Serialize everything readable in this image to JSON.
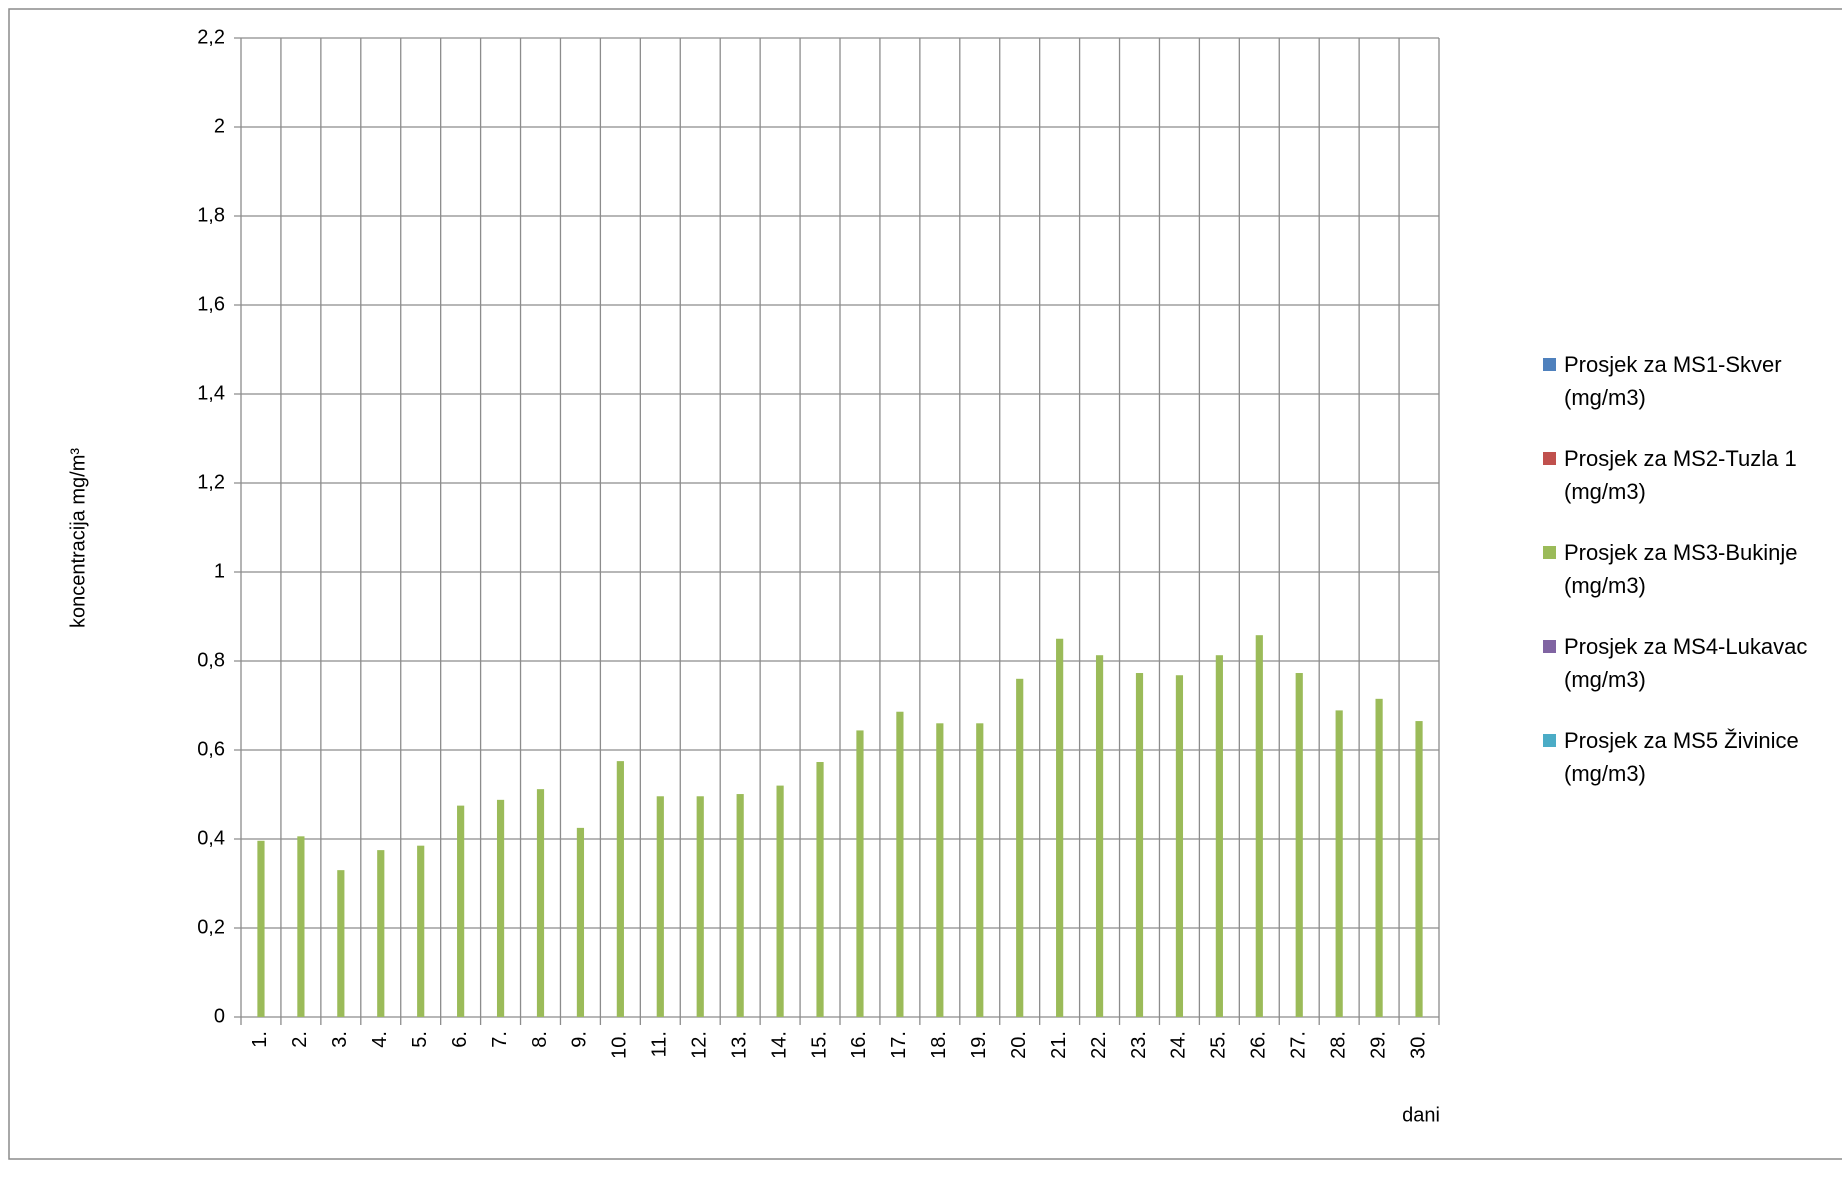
{
  "chart_data": {
    "type": "bar",
    "x_label": "dani",
    "y_label": "koncentracija mg/m³",
    "categories": [
      "1.",
      "2.",
      "3.",
      "4.",
      "5.",
      "6.",
      "7.",
      "8.",
      "9.",
      "10.",
      "11.",
      "12.",
      "13.",
      "14.",
      "15.",
      "16.",
      "17.",
      "18.",
      "19.",
      "20.",
      "21.",
      "22.",
      "23.",
      "24.",
      "25.",
      "26.",
      "27.",
      "28.",
      "29.",
      "30."
    ],
    "series": [
      {
        "name": "Prosjek za MS1-Skver  (mg/m3)",
        "color": "#4f81bd",
        "values": [
          null,
          null,
          null,
          null,
          null,
          null,
          null,
          null,
          null,
          null,
          null,
          null,
          null,
          null,
          null,
          null,
          null,
          null,
          null,
          null,
          null,
          null,
          null,
          null,
          null,
          null,
          null,
          null,
          null,
          null
        ]
      },
      {
        "name": "Prosjek za MS2-Tuzla 1  (mg/m3)",
        "color": "#c0504d",
        "values": [
          null,
          null,
          null,
          null,
          null,
          null,
          null,
          null,
          null,
          null,
          null,
          null,
          null,
          null,
          null,
          null,
          null,
          null,
          null,
          null,
          null,
          null,
          null,
          null,
          null,
          null,
          null,
          null,
          null,
          null
        ]
      },
      {
        "name": "Prosjek za MS3-Bukinje  (mg/m3)",
        "color": "#9bbb59",
        "values": [
          0.396,
          0.406,
          0.33,
          0.375,
          0.385,
          0.475,
          0.488,
          0.512,
          0.425,
          0.575,
          0.496,
          0.496,
          0.501,
          0.52,
          0.573,
          0.644,
          0.686,
          0.66,
          0.66,
          0.76,
          0.85,
          0.813,
          0.773,
          0.768,
          0.813,
          0.858,
          0.773,
          0.689,
          0.715,
          0.665
        ]
      },
      {
        "name": "Prosjek za MS4-Lukavac (mg/m3)",
        "color": "#8064a2",
        "values": [
          null,
          null,
          null,
          null,
          null,
          null,
          null,
          null,
          null,
          null,
          null,
          null,
          null,
          null,
          null,
          null,
          null,
          null,
          null,
          null,
          null,
          null,
          null,
          null,
          null,
          null,
          null,
          null,
          null,
          null
        ]
      },
      {
        "name": "Prosjek za MS5 Živinice (mg/m3)",
        "color": "#4bacc6",
        "values": [
          null,
          null,
          null,
          null,
          null,
          null,
          null,
          null,
          null,
          null,
          null,
          null,
          null,
          null,
          null,
          null,
          null,
          null,
          null,
          null,
          null,
          null,
          null,
          null,
          null,
          null,
          null,
          null,
          null,
          null
        ]
      }
    ],
    "ylim": [
      0,
      2.2
    ],
    "yticks": [
      0,
      {
        "value": 0.2,
        "label": "0,2"
      },
      {
        "value": 0.4,
        "label": "0,4"
      },
      {
        "value": 0.6,
        "label": "0,6"
      },
      {
        "value": 0.8,
        "label": "0,8"
      },
      1,
      {
        "value": 1.2,
        "label": "1,2"
      },
      {
        "value": 1.4,
        "label": "1,4"
      },
      {
        "value": 1.6,
        "label": "1,6"
      },
      {
        "value": 1.8,
        "label": "1,8"
      },
      2,
      {
        "value": 2.2,
        "label": "2,2"
      }
    ],
    "grid": true,
    "legend": "right"
  }
}
